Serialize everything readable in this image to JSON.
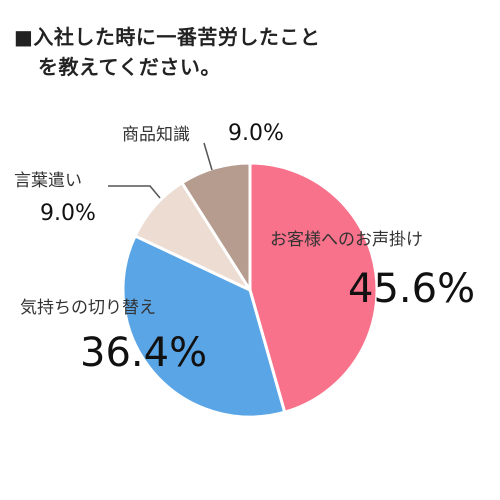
{
  "title_lines": [
    "■入社した時に一番苦労したこと",
    "を教えてください。"
  ],
  "chart_data": {
    "type": "pie",
    "title": "■入社した時に一番苦労したことを教えてください。",
    "categories": [
      "お客様へのお声掛け",
      "気持ちの切り替え",
      "言葉遣い",
      "商品知識"
    ],
    "values": [
      45.6,
      36.4,
      9.0,
      9.0
    ],
    "value_labels": [
      "45.6%",
      "36.4%",
      "9.0%",
      "9.0%"
    ],
    "colors": [
      "#f7728a",
      "#5aa5e6",
      "#eddcd2",
      "#b59c8f"
    ],
    "start_angle_deg": 0,
    "direction": "clockwise",
    "legend": "none"
  }
}
